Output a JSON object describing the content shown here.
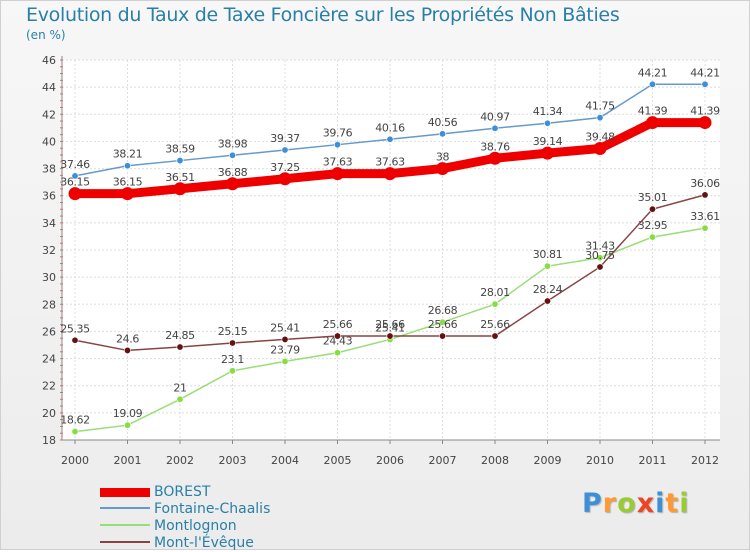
{
  "header": {
    "title": "Evolution du Taux de Taxe Foncière sur les Propriétés Non Bâties",
    "unit_label": "(en %)"
  },
  "chart_data": {
    "type": "line",
    "title": "Evolution du Taux de Taxe Foncière sur les Propriétés Non Bâties",
    "ylabel": "(en %)",
    "xlabel": "",
    "x": [
      "2000",
      "2001",
      "2002",
      "2003",
      "2004",
      "2005",
      "2006",
      "2007",
      "2008",
      "2009",
      "2010",
      "2011",
      "2012"
    ],
    "ylim": [
      18,
      46
    ],
    "yticks": [
      18,
      20,
      22,
      24,
      26,
      28,
      30,
      32,
      34,
      36,
      38,
      40,
      42,
      44,
      46
    ],
    "grid": true,
    "legend_position": "bottom-left",
    "series": [
      {
        "name": "BOREST",
        "color": "#ee0000",
        "emphasis": true,
        "values": [
          36.15,
          36.15,
          36.51,
          36.88,
          37.25,
          37.63,
          37.63,
          38,
          38.76,
          39.14,
          39.48,
          41.39,
          41.39
        ],
        "labels": [
          "36.15",
          "36.15",
          "36.51",
          "36.88",
          "37.25",
          "37.63",
          "37.63",
          "38",
          "38.76",
          "39.14",
          "39.48",
          "41.39",
          "41.39"
        ]
      },
      {
        "name": "Fontaine-Chaalis",
        "color": "#6699cc",
        "marker": "#3d8fd8",
        "values": [
          37.46,
          38.21,
          38.59,
          38.98,
          39.37,
          39.76,
          40.16,
          40.56,
          40.97,
          41.34,
          41.75,
          44.21,
          44.21
        ],
        "labels": [
          "37.46",
          "38.21",
          "38.59",
          "38.98",
          "39.37",
          "39.76",
          "40.16",
          "40.56",
          "40.97",
          "41.34",
          "41.75",
          "44.21",
          "44.21"
        ]
      },
      {
        "name": "Montlognon",
        "color": "#99dd77",
        "marker": "#88dd44",
        "values": [
          18.62,
          19.09,
          21,
          23.1,
          23.79,
          24.43,
          25.41,
          26.68,
          28.01,
          30.81,
          31.43,
          32.95,
          33.61
        ],
        "labels": [
          "18.62",
          "19.09",
          "21",
          "23.1",
          "23.79",
          "24.43",
          "25.41",
          "26.68",
          "28.01",
          "30.81",
          "31.43",
          "32.95",
          "33.61"
        ]
      },
      {
        "name": "Mont-l'Évêque",
        "color": "#884444",
        "marker": "#661111",
        "values": [
          25.35,
          24.6,
          24.85,
          25.15,
          25.41,
          25.66,
          25.66,
          25.66,
          25.66,
          28.24,
          30.75,
          35.01,
          36.06
        ],
        "labels": [
          "25.35",
          "24.6",
          "24.85",
          "25.15",
          "25.41",
          "25.66",
          "25.66",
          "25.66",
          "25.66",
          "28.24",
          "30.75",
          "35.01",
          "36.06"
        ]
      }
    ]
  },
  "brand": {
    "letters": [
      "P",
      "r",
      "o",
      "x",
      "i",
      "t",
      "i"
    ],
    "colors": [
      "#3d8fd8",
      "#ff9933",
      "#99cc33",
      "#ee4422",
      "#3d8fd8",
      "#ff9933",
      "#99cc33"
    ]
  }
}
